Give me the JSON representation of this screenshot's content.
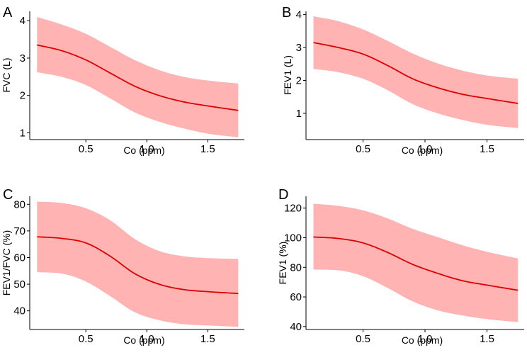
{
  "colors": {
    "band": "#ffb3b3",
    "line": "#dd0000",
    "axis": "#000000"
  },
  "chart_data": [
    {
      "type": "line",
      "panel": "A",
      "xlabel": "Co (ppm)",
      "ylabel": "FVC (L)",
      "xlim": [
        0.04,
        1.8
      ],
      "ylim": [
        0.82,
        4.25
      ],
      "xticks": [
        {
          "v": 0.5,
          "label": "0.5"
        },
        {
          "v": 1.0,
          "label": "1.0"
        },
        {
          "v": 1.5,
          "label": "1.5"
        }
      ],
      "yticks": [
        {
          "v": 1,
          "label": "1"
        },
        {
          "v": 2,
          "label": "2"
        },
        {
          "v": 3,
          "label": "3"
        },
        {
          "v": 4,
          "label": "4"
        }
      ],
      "x": [
        0.1,
        0.3,
        0.5,
        0.7,
        0.9,
        1.1,
        1.3,
        1.5,
        1.75
      ],
      "y": [
        3.35,
        3.2,
        2.95,
        2.6,
        2.25,
        2.0,
        1.83,
        1.72,
        1.6
      ],
      "lower": [
        2.62,
        2.5,
        2.28,
        1.92,
        1.55,
        1.3,
        1.12,
        0.98,
        0.88
      ],
      "upper": [
        4.1,
        3.9,
        3.65,
        3.3,
        2.95,
        2.68,
        2.5,
        2.4,
        2.32
      ]
    },
    {
      "type": "line",
      "panel": "B",
      "xlabel": "Co (ppm)",
      "ylabel": "FEV1 (L)",
      "xlim": [
        0.04,
        1.8
      ],
      "ylim": [
        0.2,
        4.1
      ],
      "xticks": [
        {
          "v": 0.5,
          "label": "0.5"
        },
        {
          "v": 1.0,
          "label": "1.0"
        },
        {
          "v": 1.5,
          "label": "1.5"
        }
      ],
      "yticks": [
        {
          "v": 1,
          "label": "1"
        },
        {
          "v": 2,
          "label": "2"
        },
        {
          "v": 3,
          "label": "3"
        },
        {
          "v": 4,
          "label": "4"
        }
      ],
      "x": [
        0.1,
        0.3,
        0.5,
        0.7,
        0.9,
        1.1,
        1.3,
        1.5,
        1.75
      ],
      "y": [
        3.15,
        3.0,
        2.8,
        2.45,
        2.05,
        1.78,
        1.58,
        1.45,
        1.3
      ],
      "lower": [
        2.35,
        2.25,
        2.05,
        1.7,
        1.28,
        1.0,
        0.8,
        0.65,
        0.55
      ],
      "upper": [
        3.95,
        3.8,
        3.55,
        3.2,
        2.82,
        2.52,
        2.3,
        2.15,
        2.05
      ]
    },
    {
      "type": "line",
      "panel": "C",
      "xlabel": "Co (ppm)",
      "ylabel": "FEV1/FVC (%)",
      "xlim": [
        0.04,
        1.8
      ],
      "ylim": [
        33,
        83
      ],
      "xticks": [
        {
          "v": 0.5,
          "label": "0.5"
        },
        {
          "v": 1.0,
          "label": "1.0"
        },
        {
          "v": 1.5,
          "label": "1.5"
        }
      ],
      "yticks": [
        {
          "v": 40,
          "label": "40"
        },
        {
          "v": 50,
          "label": "50"
        },
        {
          "v": 60,
          "label": "60"
        },
        {
          "v": 70,
          "label": "70"
        },
        {
          "v": 80,
          "label": "80"
        }
      ],
      "x": [
        0.1,
        0.3,
        0.5,
        0.7,
        0.9,
        1.1,
        1.3,
        1.5,
        1.75
      ],
      "y": [
        67.8,
        67.2,
        65.5,
        60.5,
        54.0,
        50.0,
        48.0,
        47.2,
        46.5
      ],
      "lower": [
        54.5,
        54.0,
        51.0,
        45.5,
        39.5,
        36.5,
        35.0,
        34.5,
        34.0
      ],
      "upper": [
        81.0,
        80.5,
        78.5,
        74.0,
        67.0,
        62.5,
        60.5,
        59.8,
        59.5
      ]
    },
    {
      "type": "line",
      "panel": "D",
      "xlabel": "Co (ppm)",
      "ylabel": "FEV1 (%)",
      "xlim": [
        0.04,
        1.8
      ],
      "ylim": [
        38,
        128
      ],
      "xticks": [
        {
          "v": 0.5,
          "label": "0.5"
        },
        {
          "v": 1.0,
          "label": "1.0"
        },
        {
          "v": 1.5,
          "label": "1.5"
        }
      ],
      "yticks": [
        {
          "v": 40,
          "label": "40"
        },
        {
          "v": 60,
          "label": "60"
        },
        {
          "v": 80,
          "label": "80"
        },
        {
          "v": 100,
          "label": "100"
        },
        {
          "v": 120,
          "label": "120"
        }
      ],
      "x": [
        0.1,
        0.3,
        0.5,
        0.7,
        0.9,
        1.1,
        1.3,
        1.5,
        1.75
      ],
      "y": [
        100.5,
        99.5,
        96.5,
        90.0,
        82.0,
        76.0,
        71.0,
        68.0,
        64.5
      ],
      "lower": [
        78.5,
        78.0,
        74.0,
        66.0,
        57.0,
        51.0,
        47.5,
        45.0,
        43.0
      ],
      "upper": [
        123.0,
        121.5,
        118.5,
        113.0,
        106.0,
        100.5,
        95.0,
        90.5,
        86.0
      ]
    }
  ]
}
